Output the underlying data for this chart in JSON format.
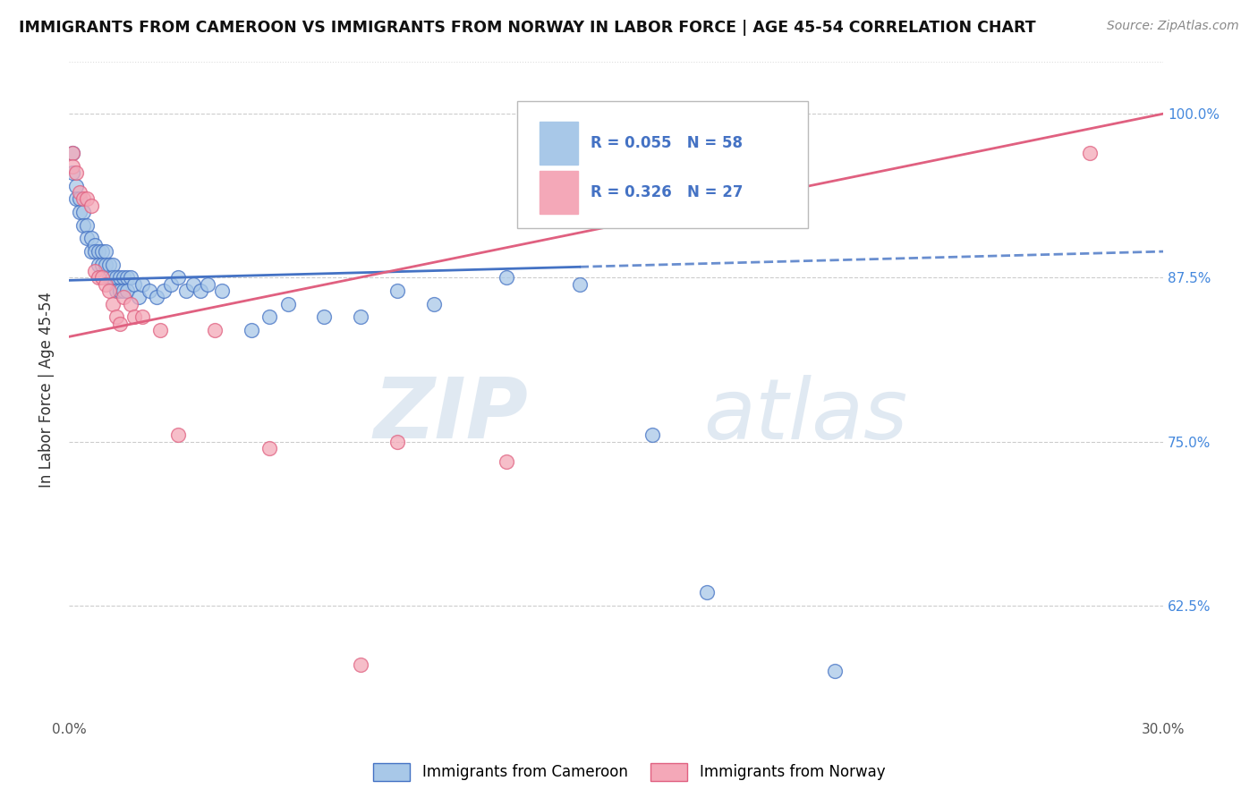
{
  "title": "IMMIGRANTS FROM CAMEROON VS IMMIGRANTS FROM NORWAY IN LABOR FORCE | AGE 45-54 CORRELATION CHART",
  "source": "Source: ZipAtlas.com",
  "ylabel": "In Labor Force | Age 45-54",
  "xlim": [
    0.0,
    0.3
  ],
  "ylim": [
    0.54,
    1.04
  ],
  "xticks": [
    0.0,
    0.05,
    0.1,
    0.15,
    0.2,
    0.25,
    0.3
  ],
  "xticklabels": [
    "0.0%",
    "",
    "",
    "",
    "",
    "",
    "30.0%"
  ],
  "ytick_positions": [
    0.625,
    0.75,
    0.875,
    1.0
  ],
  "ytick_labels": [
    "62.5%",
    "75.0%",
    "87.5%",
    "100.0%"
  ],
  "color_blue": "#a8c8e8",
  "color_pink": "#f4a8b8",
  "line_blue": "#4472c4",
  "line_pink": "#e06080",
  "R_blue": 0.055,
  "N_blue": 58,
  "R_pink": 0.326,
  "N_pink": 27,
  "legend_label_blue": "Immigrants from Cameroon",
  "legend_label_pink": "Immigrants from Norway",
  "watermark_zip": "ZIP",
  "watermark_atlas": "atlas",
  "blue_line_solid_end": 0.14,
  "blue_dots": [
    [
      0.001,
      0.97
    ],
    [
      0.001,
      0.955
    ],
    [
      0.002,
      0.945
    ],
    [
      0.002,
      0.935
    ],
    [
      0.003,
      0.935
    ],
    [
      0.003,
      0.925
    ],
    [
      0.004,
      0.925
    ],
    [
      0.004,
      0.915
    ],
    [
      0.005,
      0.915
    ],
    [
      0.005,
      0.905
    ],
    [
      0.006,
      0.905
    ],
    [
      0.006,
      0.895
    ],
    [
      0.007,
      0.9
    ],
    [
      0.007,
      0.895
    ],
    [
      0.008,
      0.895
    ],
    [
      0.008,
      0.885
    ],
    [
      0.009,
      0.895
    ],
    [
      0.009,
      0.885
    ],
    [
      0.01,
      0.895
    ],
    [
      0.01,
      0.885
    ],
    [
      0.011,
      0.885
    ],
    [
      0.011,
      0.875
    ],
    [
      0.012,
      0.885
    ],
    [
      0.012,
      0.875
    ],
    [
      0.013,
      0.875
    ],
    [
      0.013,
      0.865
    ],
    [
      0.014,
      0.875
    ],
    [
      0.014,
      0.865
    ],
    [
      0.015,
      0.875
    ],
    [
      0.015,
      0.865
    ],
    [
      0.016,
      0.875
    ],
    [
      0.016,
      0.865
    ],
    [
      0.017,
      0.875
    ],
    [
      0.018,
      0.87
    ],
    [
      0.019,
      0.86
    ],
    [
      0.02,
      0.87
    ],
    [
      0.022,
      0.865
    ],
    [
      0.024,
      0.86
    ],
    [
      0.026,
      0.865
    ],
    [
      0.028,
      0.87
    ],
    [
      0.03,
      0.875
    ],
    [
      0.032,
      0.865
    ],
    [
      0.034,
      0.87
    ],
    [
      0.036,
      0.865
    ],
    [
      0.038,
      0.87
    ],
    [
      0.042,
      0.865
    ],
    [
      0.05,
      0.835
    ],
    [
      0.055,
      0.845
    ],
    [
      0.06,
      0.855
    ],
    [
      0.07,
      0.845
    ],
    [
      0.08,
      0.845
    ],
    [
      0.09,
      0.865
    ],
    [
      0.1,
      0.855
    ],
    [
      0.12,
      0.875
    ],
    [
      0.14,
      0.87
    ],
    [
      0.16,
      0.755
    ],
    [
      0.175,
      0.635
    ],
    [
      0.21,
      0.575
    ]
  ],
  "pink_dots": [
    [
      0.001,
      0.97
    ],
    [
      0.001,
      0.96
    ],
    [
      0.002,
      0.955
    ],
    [
      0.003,
      0.94
    ],
    [
      0.004,
      0.935
    ],
    [
      0.005,
      0.935
    ],
    [
      0.006,
      0.93
    ],
    [
      0.007,
      0.88
    ],
    [
      0.008,
      0.875
    ],
    [
      0.009,
      0.875
    ],
    [
      0.01,
      0.87
    ],
    [
      0.011,
      0.865
    ],
    [
      0.012,
      0.855
    ],
    [
      0.013,
      0.845
    ],
    [
      0.014,
      0.84
    ],
    [
      0.015,
      0.86
    ],
    [
      0.017,
      0.855
    ],
    [
      0.018,
      0.845
    ],
    [
      0.02,
      0.845
    ],
    [
      0.025,
      0.835
    ],
    [
      0.03,
      0.755
    ],
    [
      0.04,
      0.835
    ],
    [
      0.055,
      0.745
    ],
    [
      0.08,
      0.58
    ],
    [
      0.09,
      0.75
    ],
    [
      0.12,
      0.735
    ],
    [
      0.28,
      0.97
    ]
  ]
}
